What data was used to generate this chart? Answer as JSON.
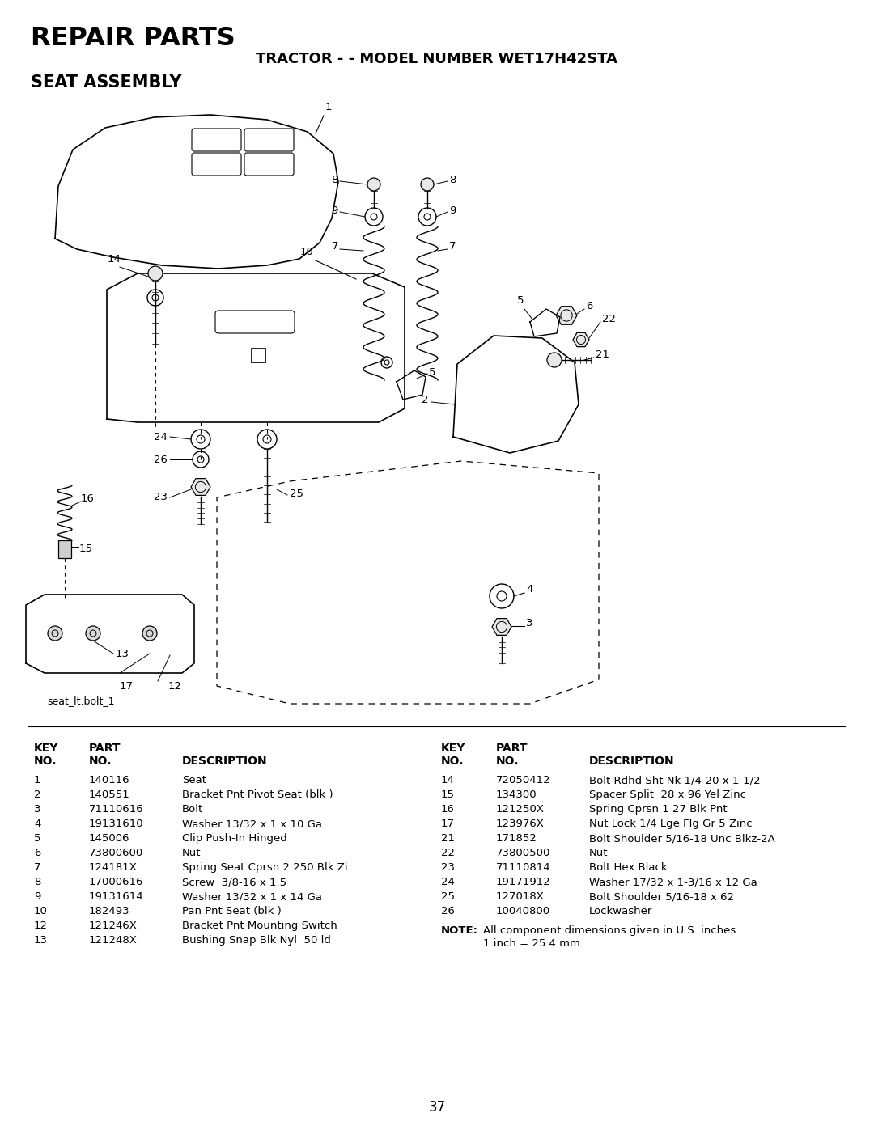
{
  "title_repair": "REPAIR PARTS",
  "title_model": "TRACTOR - - MODEL NUMBER WET17H42STA",
  "title_assembly": "SEAT ASSEMBLY",
  "diagram_label": "seat_lt.bolt_1",
  "page_number": "37",
  "background_color": "#ffffff",
  "text_color": "#000000",
  "parts_left": [
    [
      "1",
      "140116",
      "Seat"
    ],
    [
      "2",
      "140551",
      "Bracket Pnt Pivot Seat (blk )"
    ],
    [
      "3",
      "71110616",
      "Bolt"
    ],
    [
      "4",
      "19131610",
      "Washer 13/32 x 1 x 10 Ga"
    ],
    [
      "5",
      "145006",
      "Clip Push-In Hinged"
    ],
    [
      "6",
      "73800600",
      "Nut"
    ],
    [
      "7",
      "124181X",
      "Spring Seat Cprsn 2 250 Blk Zi"
    ],
    [
      "8",
      "17000616",
      "Screw  3/8-16 x 1.5"
    ],
    [
      "9",
      "19131614",
      "Washer 13/32 x 1 x 14 Ga"
    ],
    [
      "10",
      "182493",
      "Pan Pnt Seat (blk )"
    ],
    [
      "12",
      "121246X",
      "Bracket Pnt Mounting Switch"
    ],
    [
      "13",
      "121248X",
      "Bushing Snap Blk Nyl  50 ld"
    ]
  ],
  "parts_right": [
    [
      "14",
      "72050412",
      "Bolt Rdhd Sht Nk 1/4-20 x 1-1/2"
    ],
    [
      "15",
      "134300",
      "Spacer Split  28 x 96 Yel Zinc"
    ],
    [
      "16",
      "121250X",
      "Spring Cprsn 1 27 Blk Pnt"
    ],
    [
      "17",
      "123976X",
      "Nut Lock 1/4 Lge Flg Gr 5 Zinc"
    ],
    [
      "21",
      "171852",
      "Bolt Shoulder 5/16-18 Unc Blkz-2A"
    ],
    [
      "22",
      "73800500",
      "Nut"
    ],
    [
      "23",
      "71110814",
      "Bolt Hex Black"
    ],
    [
      "24",
      "19171912",
      "Washer 17/32 x 1-3/16 x 12 Ga"
    ],
    [
      "25",
      "127018X",
      "Bolt Shoulder 5/16-18 x 62"
    ],
    [
      "26",
      "10040800",
      "Lockwasher"
    ]
  ]
}
